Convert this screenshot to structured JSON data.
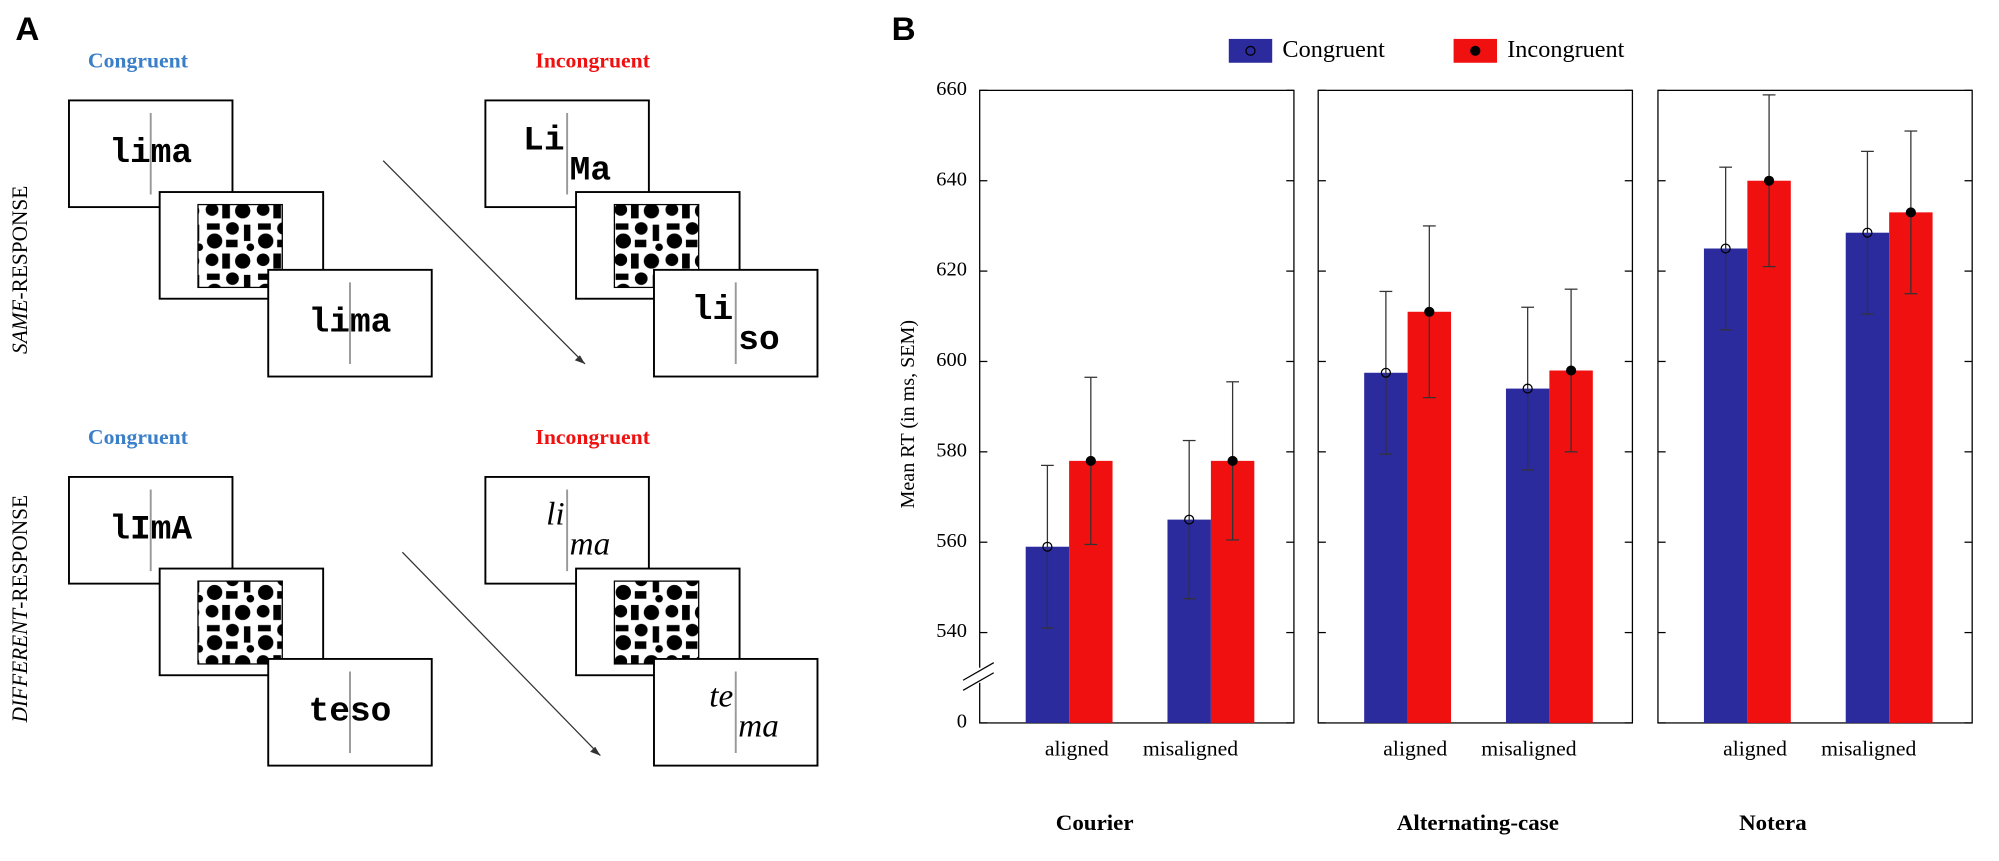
{
  "panel_a": {
    "label": "A",
    "rows": [
      {
        "response": {
          "emph": "SAME",
          "rest": "-RESPONSE"
        },
        "congruent": {
          "label": "Congruent",
          "first": {
            "left": "lima",
            "right": null
          },
          "second": {
            "left": "lima",
            "right": null
          }
        },
        "incongruent": {
          "label": "Incongruent",
          "first": {
            "left": "Li",
            "right": "Ma"
          },
          "second": {
            "left": "li",
            "right": "so"
          }
        }
      },
      {
        "response": {
          "emph": "DIFFERENT",
          "rest": "-RESPONSE"
        },
        "congruent": {
          "label": "Congruent",
          "first": {
            "left": "lImA",
            "right": null
          },
          "second": {
            "left": "teso",
            "right": null
          }
        },
        "incongruent": {
          "label": "Incongruent",
          "first": {
            "left": "li",
            "right": "ma"
          },
          "second": {
            "left": "te",
            "right": "ma"
          }
        }
      }
    ]
  },
  "chart_data": {
    "type": "bar",
    "panel_label": "B",
    "y_label": "Mean RT (in ms, SEM)",
    "ylim": [
      520,
      660
    ],
    "yticks": [
      0,
      540,
      560,
      580,
      600,
      620,
      640,
      660
    ],
    "axis_break": true,
    "legend": "top",
    "categories": [
      "aligned",
      "misaligned"
    ],
    "series": [
      {
        "name": "Congruent",
        "color": "#2b2b9e",
        "marker": "open"
      },
      {
        "name": "Incongruent",
        "color": "#f01010",
        "marker": "filled"
      }
    ],
    "panels": [
      {
        "name": "Courier",
        "values": [
          [
            559,
            565
          ],
          [
            578,
            578
          ]
        ],
        "errors": [
          [
            18,
            17.5
          ],
          [
            18.5,
            17.5
          ]
        ]
      },
      {
        "name": "Alternating-case",
        "values": [
          [
            597.5,
            594
          ],
          [
            611,
            598
          ]
        ],
        "errors": [
          [
            18,
            18
          ],
          [
            19,
            18
          ]
        ]
      },
      {
        "name": "Notera",
        "values": [
          [
            625,
            628.5
          ],
          [
            640,
            633
          ]
        ],
        "errors": [
          [
            18,
            18
          ],
          [
            19,
            18
          ]
        ]
      }
    ]
  }
}
